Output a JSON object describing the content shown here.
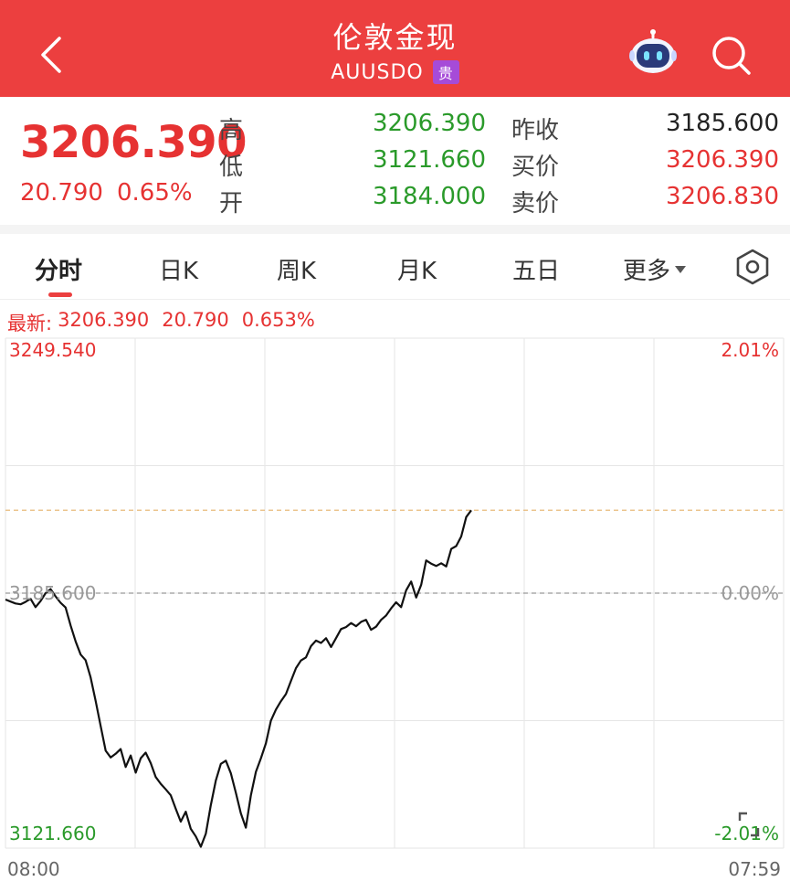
{
  "header": {
    "title": "伦敦金现",
    "code": "AUUSDO",
    "tag": "贵"
  },
  "quote": {
    "price": "3206.390",
    "change": "20.790",
    "change_pct": "0.65%",
    "rows": [
      {
        "label1": "高",
        "value1": "3206.390",
        "label2": "昨收",
        "value2": "3185.600"
      },
      {
        "label1": "低",
        "value1": "3121.660",
        "label2": "买价",
        "value2": "3206.390"
      },
      {
        "label1": "开",
        "value1": "3184.000",
        "label2": "卖价",
        "value2": "3206.830"
      }
    ]
  },
  "tabs": [
    {
      "label": "分时"
    },
    {
      "label": "日K"
    },
    {
      "label": "周K"
    },
    {
      "label": "月K"
    },
    {
      "label": "五日"
    },
    {
      "label": "更多"
    }
  ],
  "latest": {
    "label": "最新:",
    "price": "3206.390",
    "change": "20.790",
    "pct": "0.653%"
  },
  "colors": {
    "header_bg": "#ec3f3f",
    "up": "#e63232",
    "down": "#2a9a2a",
    "tag_bg": "#a64bd8"
  },
  "chart_data": {
    "type": "line",
    "y_top_label": "3249.540",
    "y_mid_label": "3185.600",
    "y_bottom_label": "3121.660",
    "pct_top_label": "2.01%",
    "pct_mid_label": "0.00%",
    "pct_bottom_label": "-2.01%",
    "x_start_label": "08:00",
    "x_end_label": "07:59",
    "ylim": [
      3121.66,
      3249.54
    ],
    "prev_close": 3185.6,
    "last_price": 3206.39,
    "series": [
      {
        "values": [
          3184.0,
          3183.5,
          3183.0,
          3182.8,
          3183.4,
          3184.2,
          3182.1,
          3183.6,
          3185.6,
          3186.6,
          3184.8,
          3183.2,
          3182.0,
          3177.5,
          3173.5,
          3170.2,
          3168.8,
          3164.5,
          3158.6,
          3152.3,
          3146.1,
          3144.4,
          3145.3,
          3146.5,
          3142.0,
          3144.9,
          3140.6,
          3144.2,
          3145.6,
          3143.0,
          3139.5,
          3137.8,
          3136.4,
          3134.9,
          3131.5,
          3128.3,
          3130.8,
          3126.5,
          3124.6,
          3122.0,
          3125.3,
          3132.4,
          3138.6,
          3142.8,
          3143.6,
          3140.4,
          3135.5,
          3130.4,
          3126.8,
          3134.9,
          3140.8,
          3144.2,
          3148.0,
          3153.6,
          3156.4,
          3158.5,
          3160.3,
          3163.6,
          3166.8,
          3168.7,
          3169.5,
          3172.3,
          3173.7,
          3173.1,
          3174.3,
          3172.1,
          3174.3,
          3176.6,
          3177.1,
          3178.1,
          3177.3,
          3178.4,
          3178.9,
          3176.4,
          3177.2,
          3178.9,
          3180.0,
          3181.8,
          3183.3,
          3182.1,
          3186.3,
          3188.5,
          3184.5,
          3187.7,
          3193.8,
          3193.0,
          3192.4,
          3193.1,
          3192.3,
          3196.7,
          3197.4,
          3199.8,
          3204.7,
          3206.39
        ]
      }
    ]
  }
}
